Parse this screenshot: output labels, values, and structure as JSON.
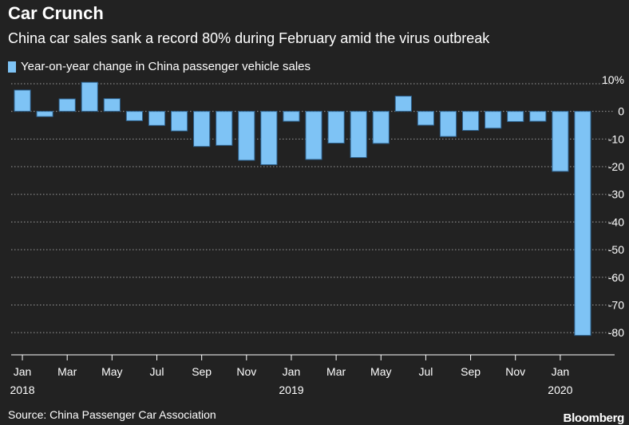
{
  "title": "Car Crunch",
  "subtitle": "China car sales sank a record 80% during February amid the virus outbreak",
  "legend_label": "Year-on-year change in China passenger vehicle sales",
  "source": "Source: China Passenger Car Association",
  "brand": "Bloomberg",
  "colors": {
    "background": "#222222",
    "bar": "#7ec3f5",
    "bar_border": "#2b5e8a",
    "grid": "#9a9a9a"
  },
  "chart_data": {
    "type": "bar",
    "title": "Car Crunch",
    "subtitle": "China car sales sank a record 80% during February amid the virus outbreak",
    "series_name": "Year-on-year change in China passenger vehicle sales",
    "categories": [
      "2018-01",
      "2018-02",
      "2018-03",
      "2018-04",
      "2018-05",
      "2018-06",
      "2018-07",
      "2018-08",
      "2018-09",
      "2018-10",
      "2018-11",
      "2018-12",
      "2019-01",
      "2019-02",
      "2019-03",
      "2019-04",
      "2019-05",
      "2019-06",
      "2019-07",
      "2019-08",
      "2019-09",
      "2019-10",
      "2019-11",
      "2019-12",
      "2020-01",
      "2020-02"
    ],
    "values": [
      7.7,
      -1.9,
      4.5,
      10.5,
      4.6,
      -3.4,
      -5.1,
      -7.1,
      -12.7,
      -12.3,
      -17.7,
      -19.3,
      -3.6,
      -17.4,
      -11.5,
      -16.7,
      -11.6,
      5.5,
      -5.0,
      -9.1,
      -6.9,
      -6.1,
      -3.7,
      -3.6,
      -21.7,
      -81.0
    ],
    "xlabel": "",
    "ylabel": "",
    "ylim": [
      -86,
      12
    ],
    "y_ticks": [
      10,
      0,
      -10,
      -20,
      -30,
      -40,
      -50,
      -60,
      -70,
      -80
    ],
    "y_tick_labels": [
      "10%",
      "0",
      "-10",
      "-20",
      "-30",
      "-40",
      "-50",
      "-60",
      "-70",
      "-80"
    ],
    "x_tick_labels": [
      {
        "index": 0,
        "label": "Jan",
        "year": "2018"
      },
      {
        "index": 2,
        "label": "Mar"
      },
      {
        "index": 4,
        "label": "May"
      },
      {
        "index": 6,
        "label": "Jul"
      },
      {
        "index": 8,
        "label": "Sep"
      },
      {
        "index": 10,
        "label": "Nov"
      },
      {
        "index": 12,
        "label": "Jan",
        "year": "2019"
      },
      {
        "index": 14,
        "label": "Mar"
      },
      {
        "index": 16,
        "label": "May"
      },
      {
        "index": 18,
        "label": "Jul"
      },
      {
        "index": 20,
        "label": "Sep"
      },
      {
        "index": 22,
        "label": "Nov"
      },
      {
        "index": 24,
        "label": "Jan",
        "year": "2020"
      }
    ],
    "grid": true,
    "y_axis_position": "right"
  }
}
